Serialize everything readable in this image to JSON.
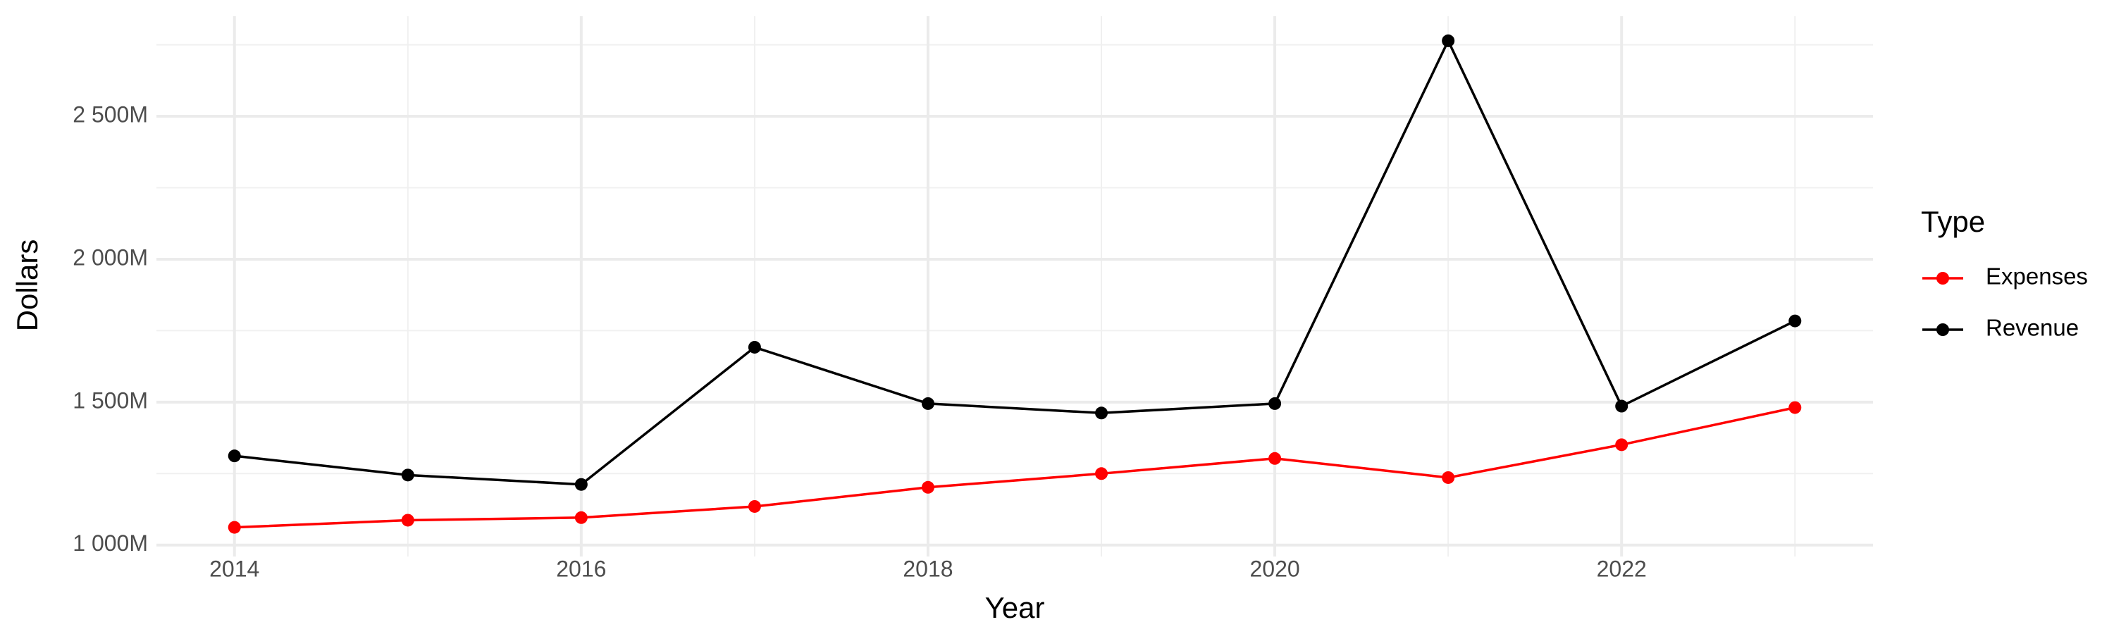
{
  "chart_data": {
    "type": "line",
    "x_label": "Year",
    "y_label": "Dollars",
    "legend_title": "Type",
    "x": [
      2014,
      2015,
      2016,
      2017,
      2018,
      2019,
      2020,
      2021,
      2022,
      2023
    ],
    "series": [
      {
        "name": "Expenses",
        "color": "#ff0000",
        "values": [
          1062,
          1087,
          1096,
          1135,
          1202,
          1250,
          1303,
          1236,
          1351,
          1481
        ]
      },
      {
        "name": "Revenue",
        "color": "#000000",
        "values": [
          1312,
          1245,
          1212,
          1692,
          1495,
          1462,
          1495,
          2764,
          1486,
          1784
        ]
      }
    ],
    "xlim": [
      2013.55,
      2023.45
    ],
    "xticks": [
      2014,
      2016,
      2018,
      2020,
      2022
    ],
    "ylim": [
      960,
      2850
    ],
    "yticks": [
      {
        "value": 1000,
        "label": "1 000M"
      },
      {
        "value": 1500,
        "label": "1 500M"
      },
      {
        "value": 2000,
        "label": "2 000M"
      },
      {
        "value": 2500,
        "label": "2 500M"
      }
    ],
    "grid": true,
    "legend": "right"
  }
}
